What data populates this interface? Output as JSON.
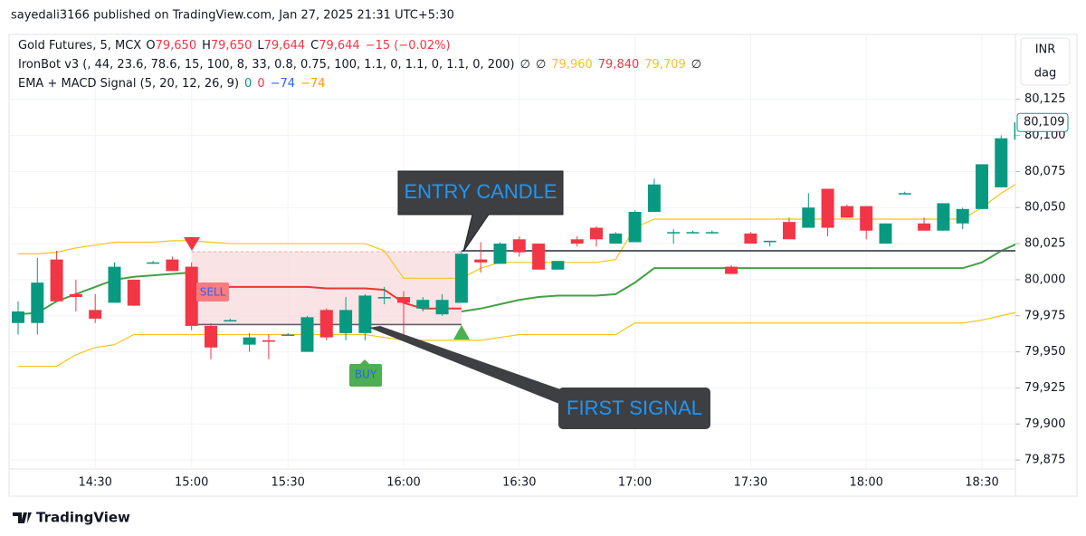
{
  "header": "sayedali3166 published on TradingView.com, Jan 27, 2025 21:31 UTC+5:30",
  "footer": "TradingView",
  "legend": [
    [
      {
        "text": "Gold Futures, 5, MCX",
        "color": "#131722"
      },
      {
        "text": "O",
        "color": "#131722"
      },
      {
        "text": "79,650",
        "color": "#f23645"
      },
      {
        "text": "H",
        "color": "#131722"
      },
      {
        "text": "79,650",
        "color": "#f23645"
      },
      {
        "text": "L",
        "color": "#131722"
      },
      {
        "text": "79,644",
        "color": "#f23645"
      },
      {
        "text": "C",
        "color": "#131722"
      },
      {
        "text": "79,644",
        "color": "#f23645"
      },
      {
        "text": "−15 (−0.02%)",
        "color": "#f23645"
      }
    ],
    [
      {
        "text": "IronBot v3 (, 44, 23.6, 78.6, 15, 100, 8, 33, 0.8, 0.75, 100, 1.1, 0, 1.1, 0, 1.1, 0, 200)",
        "color": "#131722"
      },
      {
        "text": "∅",
        "color": "#131722"
      },
      {
        "text": "∅",
        "color": "#131722"
      },
      {
        "text": "79,960",
        "color": "#f5c518"
      },
      {
        "text": "79,840",
        "color": "#f23645"
      },
      {
        "text": "79,709",
        "color": "#f5c518"
      },
      {
        "text": "∅",
        "color": "#131722"
      }
    ],
    [
      {
        "text": "EMA + MACD Signal (5, 20, 12, 26, 9)",
        "color": "#131722"
      },
      {
        "text": "0",
        "color": "#089981"
      },
      {
        "text": "0",
        "color": "#f23645"
      },
      {
        "text": "−74",
        "color": "#2962ff"
      },
      {
        "text": "−74",
        "color": "#ff9800"
      }
    ]
  ],
  "chart_data": {
    "type": "candlestick",
    "currency": "INR",
    "unit": "dag",
    "up_color": "#089981",
    "down_color": "#f23645",
    "categories": [
      null,
      null,
      null,
      null,
      "14:30",
      null,
      null,
      null,
      null,
      "15:00",
      null,
      null,
      null,
      null,
      "15:30",
      null,
      null,
      null,
      null,
      null,
      "16:00",
      null,
      null,
      null,
      null,
      null,
      "16:30",
      null,
      null,
      null,
      null,
      null,
      "17:00",
      null,
      null,
      null,
      null,
      null,
      "17:30",
      null,
      null,
      null,
      null,
      null,
      "18:00",
      null,
      null,
      null,
      null,
      null,
      "18:30",
      null,
      null
    ],
    "open": [
      79970,
      79970,
      80014,
      79990,
      79979,
      79984,
      80000,
      80012,
      80014,
      80009,
      79968,
      79972,
      79955,
      79958,
      79962,
      79950,
      79979,
      79963,
      79963,
      79987,
      79988,
      79980,
      79976,
      79984,
      80014,
      80011,
      80028,
      80025,
      80007,
      80028,
      80036,
      80025,
      80026,
      80047,
      80033,
      80033,
      80033,
      80009,
      80032,
      80026,
      80040,
      80036,
      80063,
      80051,
      80051,
      80025,
      80060,
      80039,
      80034,
      80039,
      80049,
      80064,
      80097
    ],
    "high": [
      79985,
      80015,
      80020,
      80000,
      79990,
      80012,
      80000,
      80013,
      80016,
      80012,
      79970,
      79973,
      79963,
      79962,
      79963,
      79975,
      79980,
      79988,
      79990,
      79995,
      79992,
      79988,
      79990,
      80020,
      80026,
      80026,
      80030,
      80025,
      80013,
      80030,
      80037,
      80033,
      80048,
      80070,
      80035,
      80034,
      80034,
      80010,
      80033,
      80027,
      80043,
      80060,
      80063,
      80052,
      80051,
      80039,
      80061,
      80043,
      80053,
      80050,
      80080,
      80100,
      80112
    ],
    "low": [
      79962,
      79962,
      79985,
      79978,
      79970,
      79984,
      79982,
      80011,
      80006,
      79965,
      79945,
      79971,
      79950,
      79945,
      79961,
      79950,
      79958,
      79958,
      79958,
      79983,
      79960,
      79978,
      79975,
      79984,
      80005,
      80011,
      80016,
      80007,
      80007,
      80023,
      80023,
      80025,
      80026,
      80047,
      80025,
      80032,
      80032,
      80004,
      80025,
      80023,
      80028,
      80036,
      80030,
      80043,
      80028,
      80025,
      80059,
      80034,
      80034,
      80035,
      80049,
      80064,
      80097
    ],
    "close": [
      79978,
      79998,
      79985,
      79988,
      79973,
      80009,
      79982,
      80012,
      80006,
      79968,
      79953,
      79972,
      79960,
      79957,
      79962,
      79974,
      79960,
      79979,
      79989,
      79988,
      79984,
      79986,
      79986,
      80018,
      80012,
      80025,
      80019,
      80007,
      80013,
      80025,
      80028,
      80032,
      80047,
      80066,
      80033,
      80033,
      80033,
      80004,
      80025,
      80027,
      80028,
      80050,
      80036,
      80043,
      80034,
      80039,
      80060,
      80034,
      80053,
      80049,
      80080,
      80098,
      80109
    ],
    "last_label": "80,109",
    "overlays": [
      {
        "color": "#f5c518",
        "width": 1.2,
        "values": [
          80018,
          80018,
          80019,
          80022,
          80024,
          80026,
          80026,
          80026,
          80027,
          80027,
          80026,
          80025,
          80025,
          80025,
          80025,
          80025,
          80025,
          80025,
          80025,
          80020,
          80001,
          80001,
          80001,
          80001,
          80008,
          80012,
          80012,
          80012,
          80012,
          80012,
          80012,
          80014,
          80036,
          80042,
          80042,
          80042,
          80042,
          80042,
          80042,
          80042,
          80042,
          80042,
          80042,
          80042,
          80042,
          80042,
          80042,
          80042,
          80042,
          80042,
          80050,
          80060,
          80068
        ]
      },
      {
        "color": "#f5c518",
        "width": 1.2,
        "values": [
          79940,
          79940,
          79940,
          79948,
          79953,
          79955,
          79962,
          79962,
          79962,
          79962,
          79962,
          79962,
          79962,
          79962,
          79962,
          79962,
          79962,
          79962,
          79962,
          79960,
          79958,
          79958,
          79958,
          79958,
          79958,
          79960,
          79962,
          79962,
          79962,
          79962,
          79962,
          79962,
          79970,
          79970,
          79970,
          79970,
          79970,
          79970,
          79970,
          79970,
          79970,
          79970,
          79970,
          79970,
          79970,
          79970,
          79970,
          79970,
          79970,
          79970,
          79972,
          79975,
          79978
        ]
      },
      {
        "color": "#43a047",
        "width": 2,
        "values": [
          79976,
          79977,
          79985,
          79990,
          79995,
          80000,
          80002,
          80003,
          80004,
          80005,
          null,
          null,
          null,
          null,
          null,
          null,
          null,
          null,
          null,
          null,
          null,
          null,
          null,
          79978,
          79980,
          79983,
          79986,
          79988,
          79989,
          79989,
          79989,
          79990,
          79998,
          80008,
          80008,
          80008,
          80008,
          80008,
          80008,
          80008,
          80008,
          80008,
          80008,
          80008,
          80008,
          80008,
          80008,
          80008,
          80008,
          80008,
          80012,
          80020,
          80026
        ]
      },
      {
        "color": "#e53935",
        "width": 2,
        "values": [
          null,
          null,
          null,
          null,
          null,
          null,
          null,
          null,
          null,
          79995,
          79995,
          79995,
          79995,
          79995,
          79995,
          79995,
          79994,
          79994,
          79994,
          79993,
          79984,
          79980,
          79980,
          79980,
          null,
          null,
          null,
          null,
          null,
          null,
          null,
          null,
          null,
          null,
          null,
          null,
          null,
          null,
          null,
          null,
          null,
          null,
          null,
          null,
          null,
          null,
          null,
          null,
          null,
          null,
          null,
          null,
          null
        ]
      },
      {
        "color": "#5d606b",
        "width": 2,
        "values": [
          null,
          null,
          null,
          null,
          null,
          null,
          null,
          null,
          null,
          null,
          null,
          null,
          null,
          null,
          null,
          null,
          null,
          null,
          null,
          null,
          null,
          null,
          null,
          80020,
          80020,
          80020,
          80020,
          80020,
          80020,
          80020,
          80020,
          80020,
          80020,
          80020,
          80020,
          80020,
          80020,
          80020,
          80020,
          80020,
          80020,
          80020,
          80020,
          80020,
          80020,
          80020,
          80020,
          80020,
          80020,
          80020,
          80020,
          80020,
          80020
        ]
      },
      {
        "color": "#5d606b",
        "width": 1.5,
        "values": [
          null,
          null,
          null,
          null,
          null,
          null,
          null,
          null,
          null,
          79969,
          79969,
          79969,
          79969,
          79969,
          79969,
          79969,
          79969,
          79969,
          79969,
          79969,
          79969,
          79969,
          79969,
          79969,
          null,
          null,
          null,
          null,
          null,
          null,
          null,
          null,
          null,
          null,
          null,
          null,
          null,
          null,
          null,
          null,
          null,
          null,
          null,
          null,
          null,
          null,
          null,
          null,
          null,
          null,
          null,
          null,
          null
        ]
      }
    ],
    "annotations": [
      "ENTRY CANDLE",
      "FIRST SIGNAL",
      "SELL",
      "BUY"
    ],
    "ylim": [
      79855,
      80170
    ],
    "yticks": [
      {
        "value": 79875,
        "label": "79,875"
      },
      {
        "value": 79900,
        "label": "79,900"
      },
      {
        "value": 79925,
        "label": "79,925"
      },
      {
        "value": 79950,
        "label": "79,950"
      },
      {
        "value": 79975,
        "label": "79,975"
      },
      {
        "value": 80000,
        "label": "80,000"
      },
      {
        "value": 80025,
        "label": "80,025"
      },
      {
        "value": 80050,
        "label": "80,050"
      },
      {
        "value": 80075,
        "label": "80,075"
      },
      {
        "value": 80100,
        "label": "80,100"
      },
      {
        "value": 80125,
        "label": "80,125"
      }
    ]
  }
}
